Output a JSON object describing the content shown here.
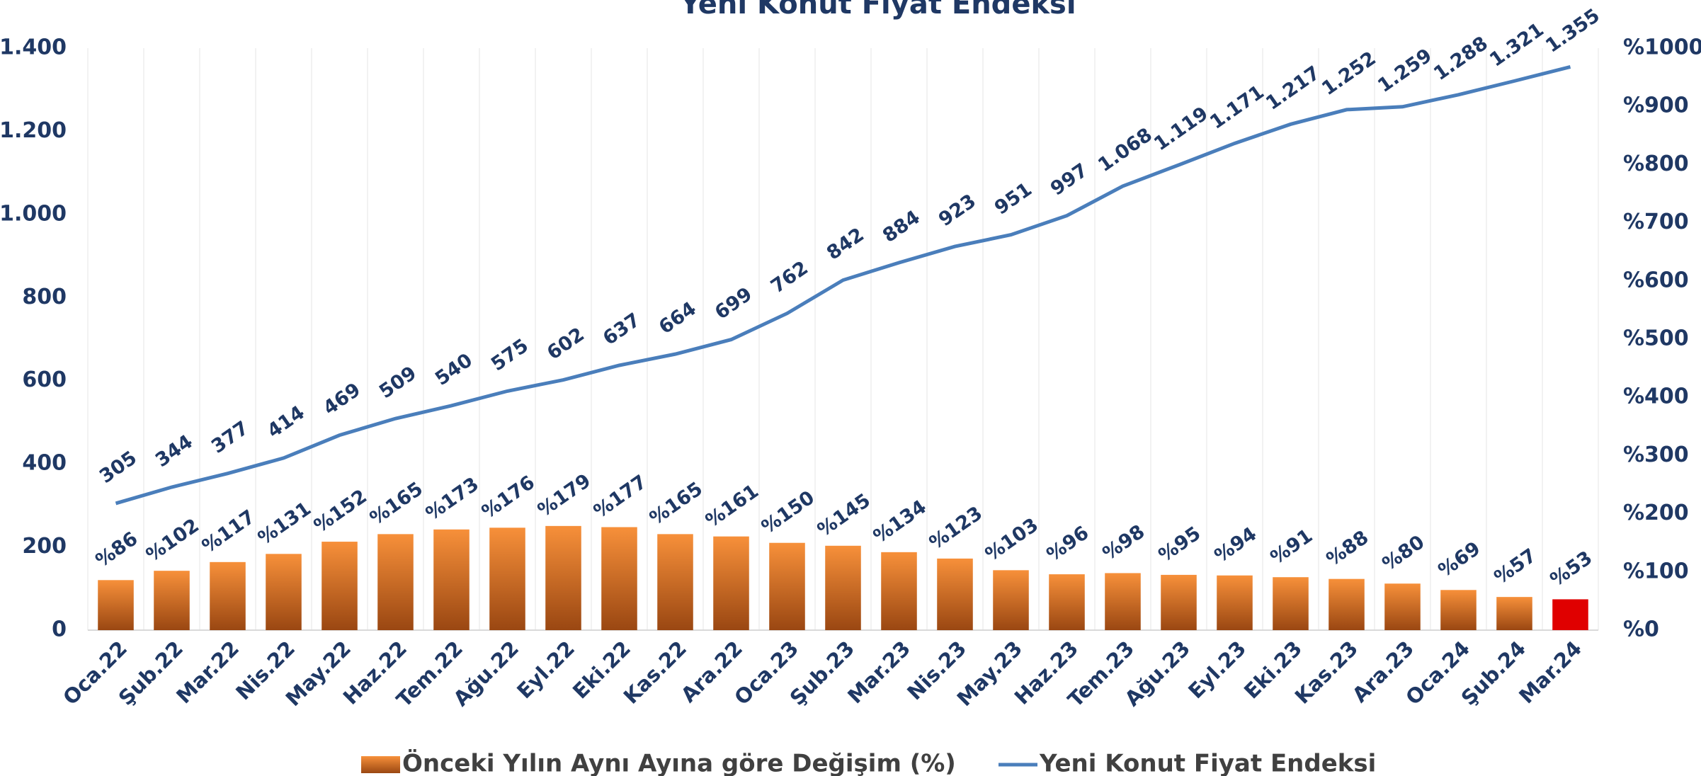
{
  "chart_data": {
    "type": "bar-line",
    "title": "Yeni Konut Fiyat Endeksi",
    "categories": [
      "Oca.22",
      "Şub.22",
      "Mar.22",
      "Nis.22",
      "May.22",
      "Haz.22",
      "Tem.22",
      "Ağu.22",
      "Eyl.22",
      "Eki.22",
      "Kas.22",
      "Ara.22",
      "Oca.23",
      "Şub.23",
      "Mar.23",
      "Nis.23",
      "May.23",
      "Haz.23",
      "Tem.23",
      "Ağu.23",
      "Eyl.23",
      "Eki.23",
      "Kas.23",
      "Ara.23",
      "Oca.24",
      "Şub.24",
      "Mar.24"
    ],
    "series": [
      {
        "name": "Önceki Yılın Aynı Ayına göre Değişim (%)",
        "type": "bar",
        "axis": "y2",
        "color": "#e8772e",
        "colors": [
          "#e8772e",
          "#e8772e",
          "#e8772e",
          "#e8772e",
          "#e8772e",
          "#e8772e",
          "#e8772e",
          "#e8772e",
          "#e8772e",
          "#e8772e",
          "#e8772e",
          "#e8772e",
          "#e8772e",
          "#e8772e",
          "#e8772e",
          "#e8772e",
          "#e8772e",
          "#e8772e",
          "#e8772e",
          "#e8772e",
          "#e8772e",
          "#e8772e",
          "#e8772e",
          "#e8772e",
          "#e8772e",
          "#e8772e",
          "#e00000"
        ],
        "values": [
          86,
          102,
          117,
          131,
          152,
          165,
          173,
          176,
          179,
          177,
          165,
          161,
          150,
          145,
          134,
          123,
          103,
          96,
          98,
          95,
          94,
          91,
          88,
          80,
          69,
          57,
          53
        ],
        "value_labels": [
          "%86",
          "%102",
          "%117",
          "%131",
          "%152",
          "%165",
          "%173",
          "%176",
          "%179",
          "%177",
          "%165",
          "%161",
          "%150",
          "%145",
          "%134",
          "%123",
          "%103",
          "%96",
          "%98",
          "%95",
          "%94",
          "%91",
          "%88",
          "%80",
          "%69",
          "%57",
          "%53"
        ]
      },
      {
        "name": "Yeni Konut Fiyat Endeksi",
        "type": "line",
        "color": "#4a7ebb",
        "values": [
          305,
          344,
          377,
          414,
          469,
          509,
          540,
          575,
          602,
          637,
          664,
          699,
          762,
          842,
          884,
          923,
          951,
          997,
          1068,
          1119,
          1171,
          1217,
          1252,
          1259,
          1288,
          1321,
          1355
        ],
        "value_labels": [
          "305",
          "344",
          "377",
          "414",
          "469",
          "509",
          "540",
          "575",
          "602",
          "637",
          "664",
          "699",
          "762",
          "842",
          "884",
          "923",
          "951",
          "997",
          "1.068",
          "1.119",
          "1.171",
          "1.217",
          "1.252",
          "1.259",
          "1.288",
          "1.321",
          "1.355"
        ]
      }
    ],
    "ylim": [
      0,
      1400
    ],
    "yticks": [
      0,
      200,
      400,
      600,
      800,
      {
        "value": 1000,
        "label": "1.000"
      },
      {
        "value": 1200,
        "label": "1.200"
      },
      {
        "value": 1400,
        "label": "1.400"
      }
    ],
    "y2lim": [
      0,
      1000
    ],
    "y2ticks": [
      {
        "value": 0,
        "label": "%0"
      },
      {
        "value": 100,
        "label": "%100"
      },
      {
        "value": 200,
        "label": "%200"
      },
      {
        "value": 300,
        "label": "%300"
      },
      {
        "value": 400,
        "label": "%400"
      },
      {
        "value": 500,
        "label": "%500"
      },
      {
        "value": 600,
        "label": "%600"
      },
      {
        "value": 700,
        "label": "%700"
      },
      {
        "value": 800,
        "label": "%800"
      },
      {
        "value": 900,
        "label": "%900"
      },
      {
        "value": 1000,
        "label": "%1000"
      }
    ],
    "legend": "bottom"
  }
}
